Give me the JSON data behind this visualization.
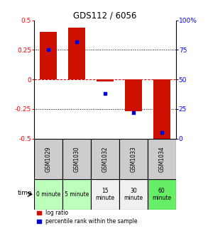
{
  "title": "GDS112 / 6056",
  "samples": [
    "GSM1029",
    "GSM1030",
    "GSM1032",
    "GSM1033",
    "GSM1034"
  ],
  "log_ratios": [
    0.4,
    0.44,
    -0.02,
    -0.27,
    -0.52
  ],
  "percentile_ranks": [
    0.75,
    0.82,
    0.38,
    0.22,
    0.05
  ],
  "time_labels": [
    "0 minute",
    "5 minute",
    "15\nminute",
    "30\nminute",
    "60\nminute"
  ],
  "time_colors": [
    "#bbffbb",
    "#bbffbb",
    "#f0f0f0",
    "#f0f0f0",
    "#66ee66"
  ],
  "bar_color": "#cc1100",
  "dot_color": "#0000cc",
  "ylim": [
    -0.5,
    0.5
  ],
  "yticks": [
    -0.5,
    -0.25,
    0,
    0.25,
    0.5
  ],
  "ytick_labels": [
    "-0.5",
    "-0.25",
    "0",
    "0.25",
    "0.5"
  ],
  "y2ticks": [
    0,
    25,
    50,
    75,
    100
  ],
  "y2tick_labels": [
    "0",
    "25",
    "50",
    "75",
    "100%"
  ],
  "zero_line_color": "#cc0000",
  "dotted_color": "#000000",
  "bg_color": "#ffffff",
  "plot_bg": "#ffffff",
  "bar_width": 0.6,
  "legend_log_ratio": "log ratio",
  "legend_percentile": "percentile rank within the sample",
  "time_label": "time",
  "sample_bg": "#cccccc",
  "n_samples": 5
}
